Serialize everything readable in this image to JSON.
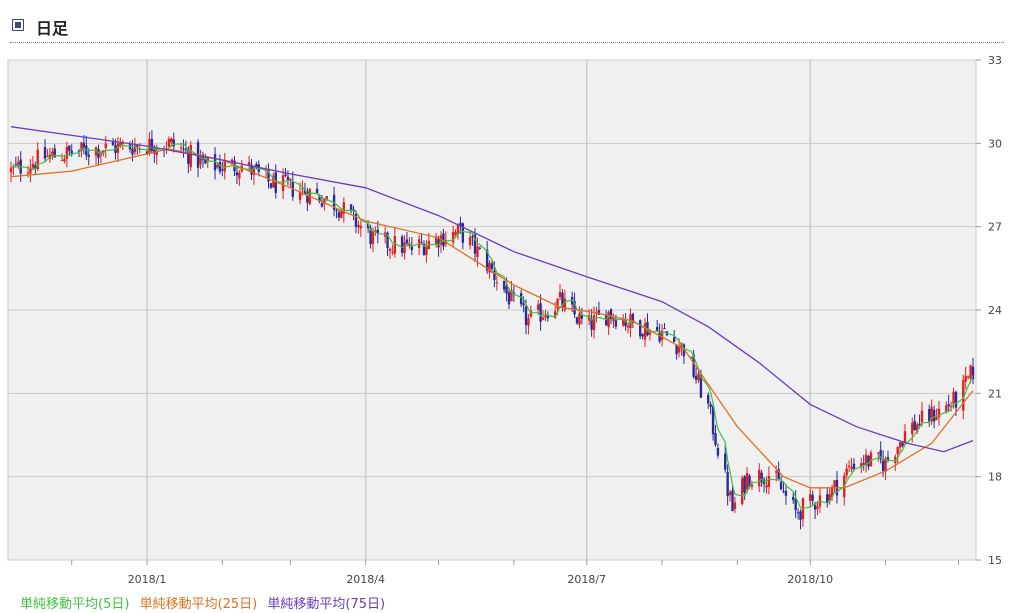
{
  "header": {
    "title": "日足"
  },
  "legend": {
    "ma5": "単純移動平均(5日)",
    "ma25": "単純移動平均(25日)",
    "ma75": "単純移動平均(75日)"
  },
  "colors": {
    "up": "#e02020",
    "down": "#2a2a9a",
    "ma5": "#40c040",
    "ma25": "#e07020",
    "ma75": "#6a3cc0",
    "plot_bg": "#f0f0f0",
    "grid": "#cccccc"
  },
  "chart_data": {
    "type": "candlestick",
    "y_ticks": [
      15,
      18,
      21,
      24,
      27,
      30,
      33
    ],
    "ylim": [
      15,
      33
    ],
    "x_ticks": [
      "2018/1",
      "2018/4",
      "2018/7",
      "2018/10"
    ],
    "x_range": [
      "2017-11-06",
      "2018-12-07"
    ],
    "grid": true,
    "price_path": [
      [
        "2017-11-06",
        29.0
      ],
      [
        "2017-11-20",
        29.5
      ],
      [
        "2017-12-11",
        29.8
      ],
      [
        "2017-12-26",
        29.9
      ],
      [
        "2018-01-10",
        30.0
      ],
      [
        "2018-01-15",
        29.8
      ],
      [
        "2018-01-25",
        29.2
      ],
      [
        "2018-02-10",
        29.2
      ],
      [
        "2018-02-20",
        28.6
      ],
      [
        "2018-03-10",
        28.2
      ],
      [
        "2018-03-20",
        27.8
      ],
      [
        "2018-04-05",
        26.5
      ],
      [
        "2018-04-20",
        26.2
      ],
      [
        "2018-05-01",
        26.6
      ],
      [
        "2018-05-10",
        26.8
      ],
      [
        "2018-05-20",
        25.8
      ],
      [
        "2018-06-01",
        24.2
      ],
      [
        "2018-06-07",
        23.6
      ],
      [
        "2018-06-20",
        24.3
      ],
      [
        "2018-07-01",
        23.4
      ],
      [
        "2018-07-10",
        23.9
      ],
      [
        "2018-07-20",
        23.5
      ],
      [
        "2018-08-01",
        23.2
      ],
      [
        "2018-08-10",
        22.6
      ],
      [
        "2018-08-20",
        20.5
      ],
      [
        "2018-08-30",
        16.8
      ],
      [
        "2018-09-05",
        18.0
      ],
      [
        "2018-09-15",
        18.1
      ],
      [
        "2018-09-25",
        16.7
      ],
      [
        "2018-10-10",
        17.5
      ],
      [
        "2018-10-20",
        18.6
      ],
      [
        "2018-11-01",
        18.5
      ],
      [
        "2018-11-10",
        19.7
      ],
      [
        "2018-11-20",
        20.2
      ],
      [
        "2018-12-01",
        20.8
      ],
      [
        "2018-12-07",
        21.8
      ]
    ],
    "ma25_path": [
      [
        "2017-11-06",
        28.8
      ],
      [
        "2017-12-01",
        29.0
      ],
      [
        "2018-01-10",
        29.8
      ],
      [
        "2018-02-01",
        29.4
      ],
      [
        "2018-03-01",
        28.4
      ],
      [
        "2018-04-01",
        27.2
      ],
      [
        "2018-05-01",
        26.6
      ],
      [
        "2018-06-01",
        24.9
      ],
      [
        "2018-06-20",
        24.1
      ],
      [
        "2018-07-05",
        23.9
      ],
      [
        "2018-07-20",
        23.6
      ],
      [
        "2018-08-10",
        22.6
      ],
      [
        "2018-09-01",
        19.8
      ],
      [
        "2018-09-20",
        18.0
      ],
      [
        "2018-10-01",
        17.6
      ],
      [
        "2018-10-15",
        17.6
      ],
      [
        "2018-11-01",
        18.2
      ],
      [
        "2018-11-20",
        19.2
      ],
      [
        "2018-12-07",
        21.1
      ]
    ],
    "ma75_path": [
      [
        "2017-11-06",
        30.6
      ],
      [
        "2018-01-01",
        29.9
      ],
      [
        "2018-02-01",
        29.4
      ],
      [
        "2018-03-01",
        28.9
      ],
      [
        "2018-04-01",
        28.4
      ],
      [
        "2018-05-01",
        27.4
      ],
      [
        "2018-06-01",
        26.1
      ],
      [
        "2018-07-01",
        25.2
      ],
      [
        "2018-08-01",
        24.3
      ],
      [
        "2018-08-20",
        23.4
      ],
      [
        "2018-09-10",
        22.1
      ],
      [
        "2018-10-01",
        20.6
      ],
      [
        "2018-10-20",
        19.8
      ],
      [
        "2018-11-10",
        19.2
      ],
      [
        "2018-11-25",
        18.9
      ],
      [
        "2018-12-07",
        19.3
      ]
    ]
  }
}
